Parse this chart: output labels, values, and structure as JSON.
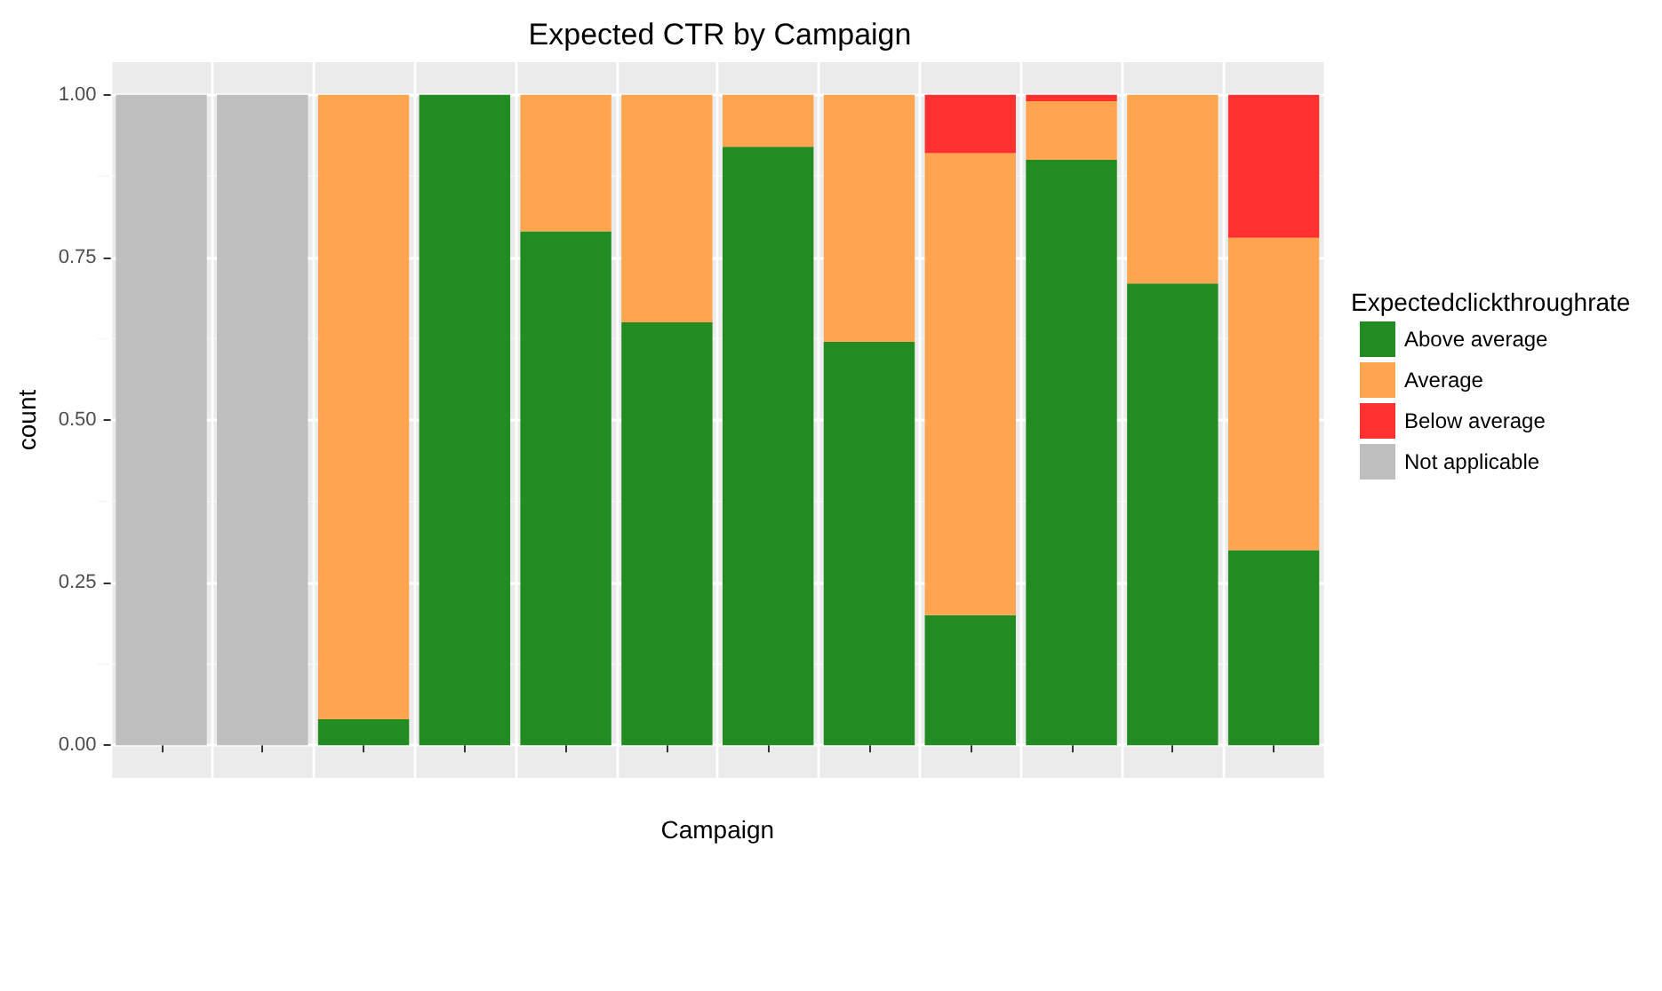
{
  "chart_data": {
    "type": "bar",
    "title": "Expected CTR by Campaign",
    "xlabel": "Campaign",
    "ylabel": "count",
    "legend_title": "Expectedclickthroughrate",
    "categories": [
      null,
      null,
      null,
      null,
      null,
      null,
      null,
      null,
      null,
      null,
      null,
      null
    ],
    "stacked": true,
    "grid": true,
    "legend": "right",
    "tick_labels": "y",
    "ylim": [
      -0.05,
      1.05
    ],
    "yticks": [
      {
        "value": 0,
        "label": "0.00"
      },
      {
        "value": 0.25,
        "label": "0.25"
      },
      {
        "value": 0.5,
        "label": "0.50"
      },
      {
        "value": 0.75,
        "label": "0.75"
      },
      {
        "value": 1,
        "label": "1.00"
      }
    ],
    "series": [
      {
        "name": "Above average",
        "color": "#228b22",
        "values": [
          null,
          null,
          0.04,
          1,
          0.79,
          0.65,
          0.92,
          0.62,
          0.2,
          0.9,
          0.71,
          0.3
        ]
      },
      {
        "name": "Average",
        "color": "#ffa54f",
        "values": [
          null,
          null,
          0.96,
          null,
          0.21,
          0.35,
          0.08,
          0.38,
          0.71,
          0.09,
          0.29,
          0.48
        ]
      },
      {
        "name": "Below average",
        "color": "#ff3030",
        "values": [
          null,
          null,
          null,
          null,
          null,
          null,
          null,
          null,
          0.09,
          0.01,
          null,
          0.22
        ]
      },
      {
        "name": "Not applicable",
        "color": "#bebebe",
        "values": [
          1,
          1,
          null,
          null,
          null,
          null,
          null,
          null,
          null,
          null,
          null,
          null
        ]
      }
    ]
  }
}
